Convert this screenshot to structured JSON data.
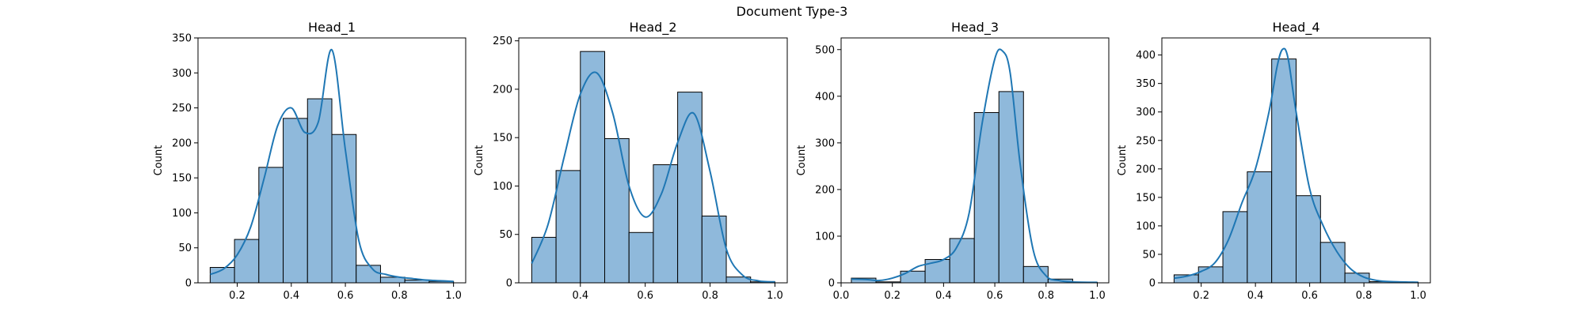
{
  "figure": {
    "suptitle": "Document Type-3"
  },
  "colors": {
    "bar_fill": "#8fb9db",
    "bar_edge": "#000000",
    "kde_line": "#1f77b4",
    "axis": "#000000"
  },
  "chart_data": [
    {
      "type": "bar",
      "title": "Head_1",
      "xlabel": "",
      "ylabel": "Count",
      "xlim": [
        0.055,
        1.045
      ],
      "ylim": [
        0,
        350
      ],
      "xticks": [
        0.2,
        0.4,
        0.6,
        0.8,
        1.0
      ],
      "xtick_labels": [
        "0.2",
        "0.4",
        "0.6",
        "0.8",
        "1.0"
      ],
      "yticks": [
        0,
        50,
        100,
        150,
        200,
        250,
        300,
        350
      ],
      "ytick_labels": [
        "0",
        "50",
        "100",
        "150",
        "200",
        "250",
        "300",
        "350"
      ],
      "bin_edges": [
        0.1,
        0.19,
        0.28,
        0.37,
        0.46,
        0.55,
        0.64,
        0.73,
        0.82,
        0.91,
        1.0
      ],
      "values": [
        22,
        62,
        165,
        235,
        263,
        212,
        25,
        8,
        4,
        2
      ],
      "kde": {
        "x": [
          0.1,
          0.15,
          0.2,
          0.25,
          0.3,
          0.35,
          0.4,
          0.45,
          0.5,
          0.55,
          0.6,
          0.65,
          0.7,
          0.75,
          0.8,
          0.85,
          0.9,
          0.95,
          1.0
        ],
        "y": [
          12,
          20,
          40,
          80,
          150,
          225,
          250,
          215,
          230,
          333,
          190,
          60,
          20,
          12,
          8,
          6,
          4,
          3,
          2
        ]
      }
    },
    {
      "type": "bar",
      "title": "Head_2",
      "xlabel": "",
      "ylabel": "Count",
      "xlim": [
        0.21,
        1.038
      ],
      "ylim": [
        0,
        253
      ],
      "xticks": [
        0.4,
        0.6,
        0.8,
        1.0
      ],
      "xtick_labels": [
        "0.4",
        "0.6",
        "0.8",
        "1.0"
      ],
      "yticks": [
        0,
        50,
        100,
        150,
        200,
        250
      ],
      "ytick_labels": [
        "0",
        "50",
        "100",
        "150",
        "200",
        "250"
      ],
      "bin_edges": [
        0.25,
        0.325,
        0.4,
        0.475,
        0.55,
        0.625,
        0.7,
        0.775,
        0.85,
        0.925,
        1.0
      ],
      "values": [
        47,
        116,
        239,
        149,
        52,
        122,
        197,
        69,
        6,
        1
      ],
      "kde": {
        "x": [
          0.25,
          0.3,
          0.35,
          0.4,
          0.45,
          0.5,
          0.55,
          0.6,
          0.65,
          0.7,
          0.75,
          0.8,
          0.85,
          0.9,
          0.95,
          1.0
        ],
        "y": [
          20,
          60,
          130,
          195,
          217,
          175,
          100,
          68,
          92,
          145,
          175,
          115,
          35,
          8,
          2,
          1
        ]
      }
    },
    {
      "type": "bar",
      "title": "Head_3",
      "xlabel": "",
      "ylabel": "Count",
      "xlim": [
        0.0,
        1.045
      ],
      "ylim": [
        0,
        525
      ],
      "xticks": [
        0.0,
        0.2,
        0.4,
        0.6,
        0.8,
        1.0
      ],
      "xtick_labels": [
        "0.0",
        "0.2",
        "0.4",
        "0.6",
        "0.8",
        "1.0"
      ],
      "yticks": [
        0,
        100,
        200,
        300,
        400,
        500
      ],
      "ytick_labels": [
        "0",
        "100",
        "200",
        "300",
        "400",
        "500"
      ],
      "bin_edges": [
        0.04,
        0.136,
        0.232,
        0.328,
        0.424,
        0.52,
        0.616,
        0.712,
        0.808,
        0.904,
        1.0
      ],
      "values": [
        10,
        2,
        25,
        50,
        95,
        365,
        410,
        35,
        8,
        1
      ],
      "kde": {
        "x": [
          0.04,
          0.1,
          0.15,
          0.2,
          0.25,
          0.3,
          0.35,
          0.4,
          0.45,
          0.5,
          0.55,
          0.6,
          0.63,
          0.66,
          0.7,
          0.75,
          0.8,
          0.85,
          0.9,
          1.0
        ],
        "y": [
          8,
          7,
          5,
          10,
          20,
          35,
          42,
          50,
          75,
          150,
          340,
          480,
          497,
          450,
          250,
          70,
          15,
          5,
          2,
          1
        ]
      }
    },
    {
      "type": "bar",
      "title": "Head_4",
      "xlabel": "",
      "ylabel": "Count",
      "xlim": [
        0.055,
        1.045
      ],
      "ylim": [
        0,
        430
      ],
      "xticks": [
        0.2,
        0.4,
        0.6,
        0.8,
        1.0
      ],
      "xtick_labels": [
        "0.2",
        "0.4",
        "0.6",
        "0.8",
        "1.0"
      ],
      "yticks": [
        0,
        50,
        100,
        150,
        200,
        250,
        300,
        350,
        400
      ],
      "ytick_labels": [
        "0",
        "50",
        "100",
        "150",
        "200",
        "250",
        "300",
        "350",
        "400"
      ],
      "bin_edges": [
        0.1,
        0.19,
        0.28,
        0.37,
        0.46,
        0.55,
        0.64,
        0.73,
        0.82,
        0.91,
        1.0
      ],
      "values": [
        14,
        28,
        125,
        195,
        393,
        153,
        71,
        17,
        2,
        1
      ],
      "kde": {
        "x": [
          0.1,
          0.15,
          0.2,
          0.25,
          0.3,
          0.35,
          0.4,
          0.45,
          0.48,
          0.5,
          0.52,
          0.55,
          0.6,
          0.65,
          0.7,
          0.75,
          0.8,
          0.85,
          0.9,
          1.0
        ],
        "y": [
          8,
          12,
          20,
          35,
          75,
          140,
          200,
          300,
          380,
          410,
          395,
          300,
          165,
          100,
          55,
          25,
          10,
          4,
          2,
          1
        ]
      }
    }
  ]
}
